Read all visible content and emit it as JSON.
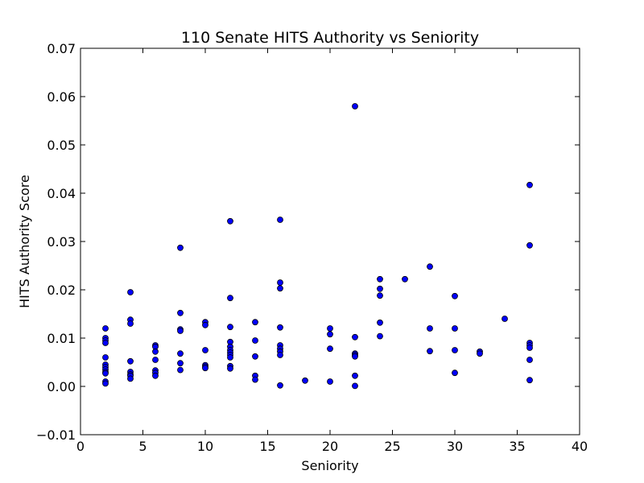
{
  "chart_data": {
    "type": "scatter",
    "title": "110 Senate HITS Authority vs Seniority",
    "xlabel": "Seniority",
    "ylabel": "HITS Authority Score",
    "xlim": [
      0,
      40
    ],
    "ylim": [
      -0.01,
      0.07
    ],
    "xticks": [
      0,
      5,
      10,
      15,
      20,
      25,
      30,
      35,
      40
    ],
    "yticks": [
      -0.01,
      0.0,
      0.01,
      0.02,
      0.03,
      0.04,
      0.05,
      0.06,
      0.07
    ],
    "xtick_labels": [
      "0",
      "5",
      "10",
      "15",
      "20",
      "25",
      "30",
      "35",
      "40"
    ],
    "ytick_labels": [
      "−0.01",
      "0.00",
      "0.01",
      "0.02",
      "0.03",
      "0.04",
      "0.05",
      "0.06",
      "0.07"
    ],
    "grid": false,
    "marker_color": "#0000ff",
    "marker_edge": "#000000",
    "points": [
      [
        2,
        0.012
      ],
      [
        2,
        0.01
      ],
      [
        2,
        0.0095
      ],
      [
        2,
        0.009
      ],
      [
        2,
        0.006
      ],
      [
        2,
        0.0045
      ],
      [
        2,
        0.004
      ],
      [
        2,
        0.0035
      ],
      [
        2,
        0.003
      ],
      [
        2,
        0.0027
      ],
      [
        2,
        0.001
      ],
      [
        2,
        0.0006
      ],
      [
        4,
        0.0195
      ],
      [
        4,
        0.0138
      ],
      [
        4,
        0.013
      ],
      [
        4,
        0.0052
      ],
      [
        4,
        0.003
      ],
      [
        4,
        0.0025
      ],
      [
        4,
        0.0022
      ],
      [
        4,
        0.0016
      ],
      [
        6,
        0.0085
      ],
      [
        6,
        0.0082
      ],
      [
        6,
        0.0072
      ],
      [
        6,
        0.0055
      ],
      [
        6,
        0.0033
      ],
      [
        6,
        0.0028
      ],
      [
        6,
        0.0022
      ],
      [
        8,
        0.0287
      ],
      [
        8,
        0.0152
      ],
      [
        8,
        0.0118
      ],
      [
        8,
        0.0115
      ],
      [
        8,
        0.0068
      ],
      [
        8,
        0.0048
      ],
      [
        8,
        0.0034
      ],
      [
        10,
        0.0133
      ],
      [
        10,
        0.0127
      ],
      [
        10,
        0.0075
      ],
      [
        10,
        0.0044
      ],
      [
        10,
        0.0041
      ],
      [
        10,
        0.0038
      ],
      [
        12,
        0.0342
      ],
      [
        12,
        0.0183
      ],
      [
        12,
        0.0123
      ],
      [
        12,
        0.0092
      ],
      [
        12,
        0.0082
      ],
      [
        12,
        0.0075
      ],
      [
        12,
        0.007
      ],
      [
        12,
        0.0065
      ],
      [
        12,
        0.006
      ],
      [
        12,
        0.0042
      ],
      [
        12,
        0.0037
      ],
      [
        14,
        0.0133
      ],
      [
        14,
        0.0095
      ],
      [
        14,
        0.0062
      ],
      [
        14,
        0.0022
      ],
      [
        14,
        0.0014
      ],
      [
        16,
        0.0345
      ],
      [
        16,
        0.0215
      ],
      [
        16,
        0.0203
      ],
      [
        16,
        0.0122
      ],
      [
        16,
        0.0085
      ],
      [
        16,
        0.0078
      ],
      [
        16,
        0.0072
      ],
      [
        16,
        0.0065
      ],
      [
        16,
        0.0002
      ],
      [
        18,
        0.0012
      ],
      [
        20,
        0.012
      ],
      [
        20,
        0.0108
      ],
      [
        20,
        0.0078
      ],
      [
        20,
        0.001
      ],
      [
        22,
        0.058
      ],
      [
        22,
        0.0102
      ],
      [
        22,
        0.0068
      ],
      [
        22,
        0.0065
      ],
      [
        22,
        0.0062
      ],
      [
        22,
        0.0022
      ],
      [
        22,
        0.0001
      ],
      [
        24,
        0.0222
      ],
      [
        24,
        0.0202
      ],
      [
        24,
        0.0188
      ],
      [
        24,
        0.0132
      ],
      [
        24,
        0.0104
      ],
      [
        26,
        0.0222
      ],
      [
        28,
        0.0248
      ],
      [
        28,
        0.012
      ],
      [
        28,
        0.0073
      ],
      [
        30,
        0.0187
      ],
      [
        30,
        0.012
      ],
      [
        30,
        0.0075
      ],
      [
        30,
        0.0028
      ],
      [
        32,
        0.0072
      ],
      [
        32,
        0.0068
      ],
      [
        34,
        0.014
      ],
      [
        36,
        0.0417
      ],
      [
        36,
        0.0292
      ],
      [
        36,
        0.009
      ],
      [
        36,
        0.0085
      ],
      [
        36,
        0.008
      ],
      [
        36,
        0.0055
      ],
      [
        36,
        0.0013
      ]
    ]
  }
}
